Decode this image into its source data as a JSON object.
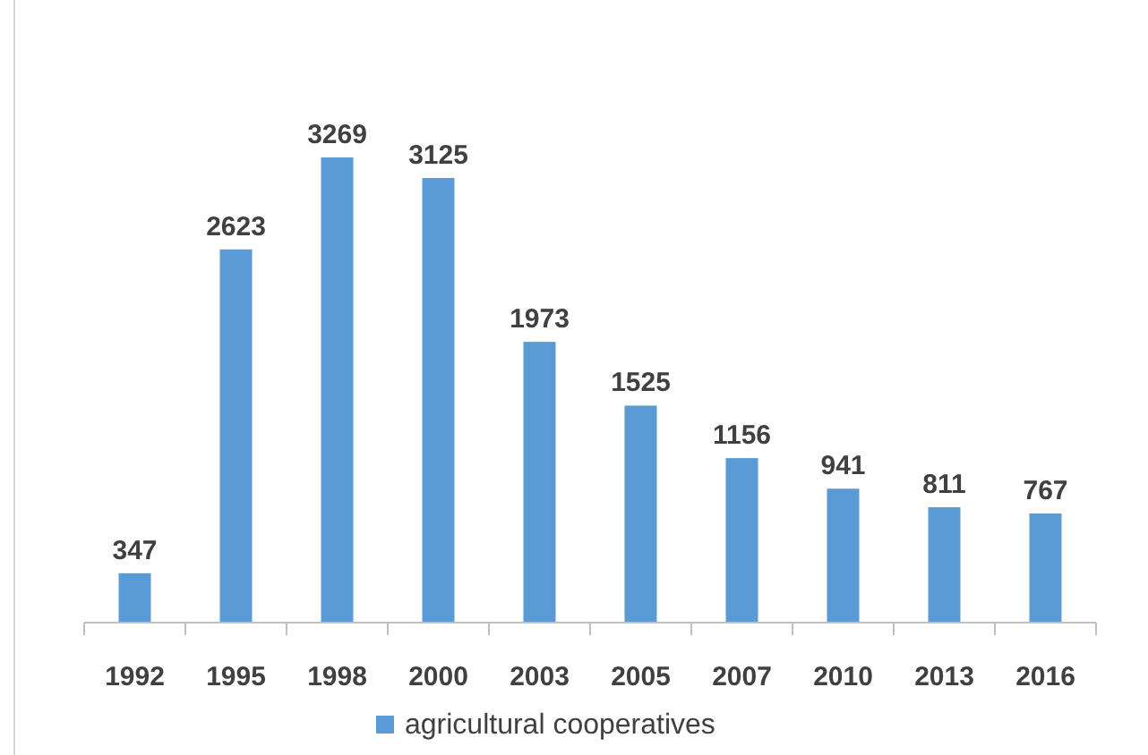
{
  "chart_data": {
    "type": "bar",
    "categories": [
      "1992",
      "1995",
      "1998",
      "2000",
      "2003",
      "2005",
      "2007",
      "2010",
      "2013",
      "2016"
    ],
    "series": [
      {
        "name": "agricultural cooperatives",
        "color": "#5b9bd5",
        "values": [
          347,
          2623,
          3269,
          3125,
          1973,
          1525,
          1156,
          941,
          811,
          767
        ]
      }
    ],
    "data_labels": true,
    "legend": "bottom"
  }
}
